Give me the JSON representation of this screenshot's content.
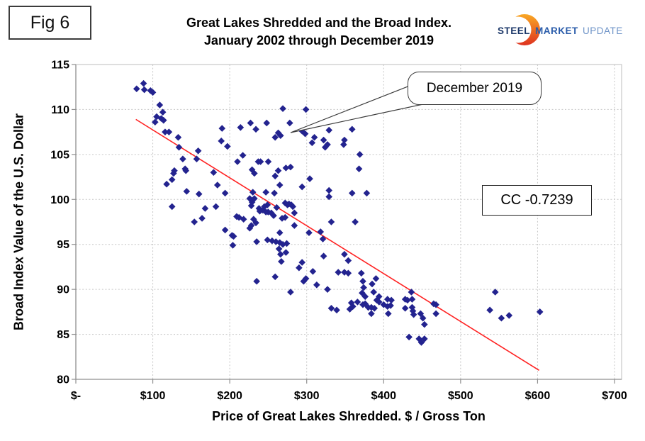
{
  "page": {
    "fig_label": "Fig 6"
  },
  "title": {
    "line1": "Great Lakes Shredded and the Broad Index.",
    "line2": "January 2002 through December 2019"
  },
  "logo": {
    "word1": "STEEL",
    "word2": "MARKET",
    "word3": "UPDATE",
    "colors": {
      "word1": "#1b3768",
      "word2": "#2a5caa",
      "word3": "#6f94c8",
      "crescent_top": "#f9a825",
      "crescent_bottom": "#de3220"
    }
  },
  "annotations": {
    "callout_label": "December 2019",
    "cc_label": "CC -0.7239"
  },
  "chart_data": {
    "type": "scatter",
    "title": "Great Lakes Shredded and the Broad Index. January 2002 through December 2019",
    "xlabel": "Price of Great Lakes Shredded. $ / Gross Ton",
    "ylabel": "Broad Index Value of the U.S. Dollar",
    "xlim": [
      0,
      700
    ],
    "ylim": [
      80,
      115
    ],
    "grid": true,
    "legend": "none",
    "x_ticks": {
      "values": [
        0,
        100,
        200,
        300,
        400,
        500,
        600,
        700
      ],
      "labels": [
        "$-",
        "$100",
        "$200",
        "$300",
        "$400",
        "$500",
        "$600",
        "$700"
      ]
    },
    "y_ticks": {
      "values": [
        80,
        85,
        90,
        95,
        100,
        105,
        110,
        115
      ],
      "labels": [
        "80",
        "85",
        "90",
        "95",
        "100",
        "105",
        "110",
        "115"
      ]
    },
    "marker": {
      "shape": "diamond",
      "color": "#23238f"
    },
    "trendline": {
      "color": "#ff2222",
      "x1": 78,
      "y1": 108.9,
      "x2": 602,
      "y2": 81.0
    },
    "highlight_point": {
      "label": "December 2019",
      "x": 294,
      "y": 107.6
    },
    "points": [
      [
        79,
        112.3
      ],
      [
        88,
        112.9
      ],
      [
        89,
        112.2
      ],
      [
        97,
        112.1
      ],
      [
        100,
        111.9
      ],
      [
        109,
        110.5
      ],
      [
        113,
        109.7
      ],
      [
        105,
        109.2
      ],
      [
        111,
        109.0
      ],
      [
        114,
        108.8
      ],
      [
        103,
        108.6
      ],
      [
        116,
        107.5
      ],
      [
        121,
        107.5
      ],
      [
        133,
        106.9
      ],
      [
        134,
        105.8
      ],
      [
        128,
        103.2
      ],
      [
        139,
        104.5
      ],
      [
        142,
        103.4
      ],
      [
        159,
        105.4
      ],
      [
        157,
        104.5
      ],
      [
        179,
        103.0
      ],
      [
        210,
        104.2
      ],
      [
        217,
        104.9
      ],
      [
        229,
        103.3
      ],
      [
        237,
        104.2
      ],
      [
        240,
        104.2
      ],
      [
        250,
        104.2
      ],
      [
        232,
        102.9
      ],
      [
        118,
        101.7
      ],
      [
        125,
        102.2
      ],
      [
        127,
        102.9
      ],
      [
        143,
        103.2
      ],
      [
        144,
        100.9
      ],
      [
        160,
        100.6
      ],
      [
        168,
        99.0
      ],
      [
        184,
        101.6
      ],
      [
        182,
        99.2
      ],
      [
        125,
        99.2
      ],
      [
        194,
        100.7
      ],
      [
        154,
        97.5
      ],
      [
        164,
        97.9
      ],
      [
        190,
        107.9
      ],
      [
        189,
        106.5
      ],
      [
        197,
        105.9
      ],
      [
        214,
        108.0
      ],
      [
        227,
        108.5
      ],
      [
        234,
        107.8
      ],
      [
        248,
        108.5
      ],
      [
        259,
        106.9
      ],
      [
        263,
        107.4
      ],
      [
        266,
        107.1
      ],
      [
        269,
        110.1
      ],
      [
        278,
        108.5
      ],
      [
        294,
        107.6
      ],
      [
        298,
        107.3
      ],
      [
        299,
        110.0
      ],
      [
        310,
        106.9
      ],
      [
        307,
        106.3
      ],
      [
        322,
        106.6
      ],
      [
        327,
        106.1
      ],
      [
        324,
        105.8
      ],
      [
        329,
        107.7
      ],
      [
        349,
        106.6
      ],
      [
        348,
        106.1
      ],
      [
        359,
        107.8
      ],
      [
        369,
        105.0
      ],
      [
        368,
        103.4
      ],
      [
        273,
        103.5
      ],
      [
        279,
        103.6
      ],
      [
        263,
        103.2
      ],
      [
        259,
        102.6
      ],
      [
        265,
        101.6
      ],
      [
        294,
        101.4
      ],
      [
        304,
        102.3
      ],
      [
        329,
        101.0
      ],
      [
        329,
        100.3
      ],
      [
        359,
        100.7
      ],
      [
        378,
        100.7
      ],
      [
        226,
        100.1
      ],
      [
        232,
        100.1
      ],
      [
        230,
        100.8
      ],
      [
        247,
        100.8
      ],
      [
        258,
        100.7
      ],
      [
        229,
        99.7
      ],
      [
        228,
        99.3
      ],
      [
        238,
        99.0
      ],
      [
        239,
        98.7
      ],
      [
        243,
        98.8
      ],
      [
        247,
        98.6
      ],
      [
        250,
        98.6
      ],
      [
        254,
        98.5
      ],
      [
        257,
        98.2
      ],
      [
        245,
        99.2
      ],
      [
        249,
        99.4
      ],
      [
        261,
        99.1
      ],
      [
        272,
        99.6
      ],
      [
        275,
        99.4
      ],
      [
        277,
        99.5
      ],
      [
        280,
        99.4
      ],
      [
        282,
        99.2
      ],
      [
        284,
        98.5
      ],
      [
        268,
        97.9
      ],
      [
        272,
        98.0
      ],
      [
        212,
        98.0
      ],
      [
        218,
        97.8
      ],
      [
        209,
        98.1
      ],
      [
        231,
        97.8
      ],
      [
        234,
        97.4
      ],
      [
        228,
        97.1
      ],
      [
        226,
        96.8
      ],
      [
        265,
        96.3
      ],
      [
        284,
        97.1
      ],
      [
        303,
        96.3
      ],
      [
        332,
        97.5
      ],
      [
        363,
        97.5
      ],
      [
        203,
        96.0
      ],
      [
        194,
        96.6
      ],
      [
        205,
        95.9
      ],
      [
        204,
        94.9
      ],
      [
        235,
        95.3
      ],
      [
        249,
        95.5
      ],
      [
        255,
        95.4
      ],
      [
        260,
        95.3
      ],
      [
        265,
        95.2
      ],
      [
        269,
        95.0
      ],
      [
        274,
        95.1
      ],
      [
        264,
        94.5
      ],
      [
        273,
        94.1
      ],
      [
        266,
        93.9
      ],
      [
        318,
        96.4
      ],
      [
        321,
        95.6
      ],
      [
        322,
        93.7
      ],
      [
        349,
        93.9
      ],
      [
        354,
        93.2
      ],
      [
        267,
        93.1
      ],
      [
        294,
        93.0
      ],
      [
        290,
        92.4
      ],
      [
        308,
        92.0
      ],
      [
        313,
        90.5
      ],
      [
        259,
        91.4
      ],
      [
        235,
        90.9
      ],
      [
        296,
        90.9
      ],
      [
        299,
        91.2
      ],
      [
        327,
        90.0
      ],
      [
        279,
        89.7
      ],
      [
        341,
        91.9
      ],
      [
        349,
        91.9
      ],
      [
        354,
        91.8
      ],
      [
        371,
        91.8
      ],
      [
        373,
        90.9
      ],
      [
        374,
        90.2
      ],
      [
        385,
        90.6
      ],
      [
        390,
        91.2
      ],
      [
        372,
        89.6
      ],
      [
        376,
        89.2
      ],
      [
        394,
        89.2
      ],
      [
        387,
        89.7
      ],
      [
        400,
        88.3
      ],
      [
        405,
        88.1
      ],
      [
        409,
        88.2
      ],
      [
        405,
        88.9
      ],
      [
        410,
        88.8
      ],
      [
        428,
        88.9
      ],
      [
        431,
        88.8
      ],
      [
        437,
        88.9
      ],
      [
        436,
        89.7
      ],
      [
        465,
        88.4
      ],
      [
        468,
        88.3
      ],
      [
        468,
        87.3
      ],
      [
        332,
        87.9
      ],
      [
        339,
        87.7
      ],
      [
        356,
        87.8
      ],
      [
        360,
        88.1
      ],
      [
        358,
        88.5
      ],
      [
        366,
        88.6
      ],
      [
        373,
        88.3
      ],
      [
        376,
        88.4
      ],
      [
        380,
        88.0
      ],
      [
        384,
        88.0
      ],
      [
        388,
        87.9
      ],
      [
        384,
        87.3
      ],
      [
        391,
        88.8
      ],
      [
        394,
        88.6
      ],
      [
        406,
        87.3
      ],
      [
        428,
        87.9
      ],
      [
        437,
        88.0
      ],
      [
        438,
        87.6
      ],
      [
        439,
        87.2
      ],
      [
        448,
        87.3
      ],
      [
        451,
        86.8
      ],
      [
        453,
        86.1
      ],
      [
        433,
        84.7
      ],
      [
        446,
        84.5
      ],
      [
        449,
        84.1
      ],
      [
        453,
        84.5
      ],
      [
        545,
        89.7
      ],
      [
        538,
        87.7
      ],
      [
        553,
        86.8
      ],
      [
        563,
        87.1
      ],
      [
        603,
        87.5
      ]
    ]
  }
}
